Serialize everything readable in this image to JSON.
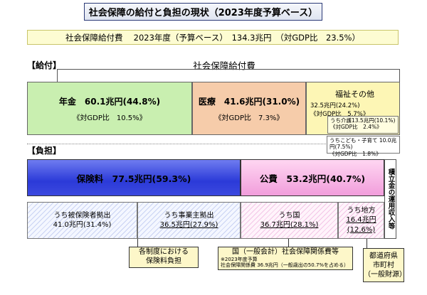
{
  "title": "社会保障の給付と負担の現状（2023年度予算ベース）",
  "summary": "社会保障給付費　 2023年度（予算ベース）　134.3兆円　（対GDP比　23.5%）",
  "benefits": {
    "section_label": "【給付】",
    "heading": "社会保障給付費",
    "pension": {
      "main": "年金　60.1兆円(44.8%)",
      "sub": "《対GDP比　10.5%》",
      "color": "#c9efb0"
    },
    "medical": {
      "main": "医療　41.6兆円(31.0%)",
      "sub": "《対GDP比　7.3%》",
      "color": "#f6ccaa"
    },
    "welfare": {
      "main": "福祉その他",
      "line1": "32.5兆円(24.2%)",
      "line2": "《対GDP比　5.7%》",
      "care": {
        "line1": "うち介護13.5兆円(10.1%)",
        "line2": "《対GDP比　2.4%》"
      },
      "children": {
        "line1": "うちこども・子育て 10.0兆円(7.5%)",
        "line2": "《対GDP比　1.8%》"
      },
      "color": "#fdf6b5"
    }
  },
  "burden": {
    "section_label": "【負担】",
    "insurance": {
      "main": "保険料　77.5兆円(59.3%)",
      "color": "#2b3ad8"
    },
    "public": {
      "main": "公費　53.2兆円(40.7%)",
      "color": "#f19ddb"
    },
    "reserve": "積立金の運用収入等",
    "insured": {
      "label": "うち被保険者拠出",
      "value": "41.0兆円(31.4%)"
    },
    "employer": {
      "label": "うち事業主拠出",
      "value": "36.5兆円(27.9%)"
    },
    "national": {
      "label": "うち国",
      "value": "36.7兆円(28.1%)"
    },
    "local": {
      "label": "うち地方",
      "value1": "16.4兆円",
      "value2": "(12.6%)"
    }
  },
  "notes": {
    "system": {
      "line1": "各制度における",
      "line2": "保険料負担"
    },
    "national": {
      "line1": "国（一般会計）社会保障関係費等",
      "small1": "※2023年度予算",
      "small2": "社会保障関係費 36.9兆円（一般歳出の50.7%を占める）"
    },
    "local": {
      "line1": "都道府県",
      "line2": "市町村",
      "line3": "（一般財源）"
    }
  }
}
